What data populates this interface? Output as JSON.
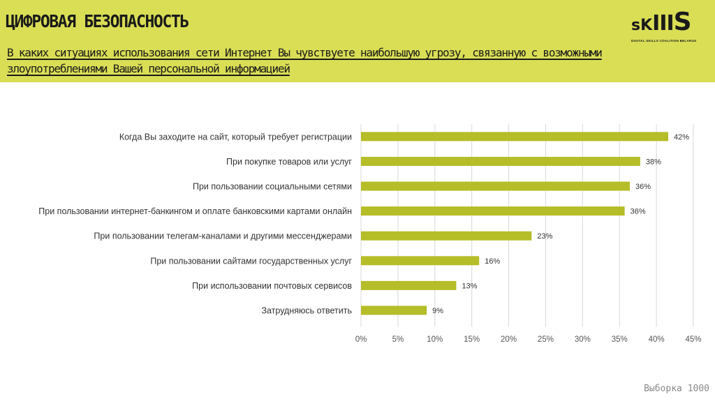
{
  "header": {
    "title": "ЦИФРОВАЯ БЕЗОПАСНОСТЬ",
    "question": "В каких ситуациях использования сети Интернет Вы чувствуете наибольшую угрозу, связанную с возможными злоупотреблениями Вашей персональной информацией",
    "accent_color": "#d9de55"
  },
  "logo": {
    "word_small": "sK",
    "word_bars": "III",
    "word_big": "S",
    "tagline": "DIGITAL SKILLS COALITION BELARUS"
  },
  "chart_data": {
    "type": "bar",
    "orientation": "horizontal",
    "categories": [
      "Когда Вы заходите на сайт, который требует регистрации",
      "При покупке товаров или услуг",
      "При пользовании социальными сетями",
      "При пользовании интернет-банкингом и оплате банковскими картами онлайн",
      "При пользовании телегам-каналами и другими мессенджерами",
      "При пользовании сайтами государственных услуг",
      "При использовании почтовых сервисов",
      "Затрудняюсь ответить"
    ],
    "values": [
      41.6,
      37.8,
      36.4,
      35.7,
      23.1,
      16.0,
      12.9,
      8.9
    ],
    "value_labels": [
      "42%",
      "38%",
      "36%",
      "36%",
      "23%",
      "16%",
      "13%",
      "9%"
    ],
    "x_ticks": [
      "0%",
      "5%",
      "10%",
      "15%",
      "20%",
      "25%",
      "30%",
      "35%",
      "40%",
      "45%"
    ],
    "xlim": [
      0,
      45
    ],
    "grid": true,
    "bar_color": "#b5bd28"
  },
  "footer": {
    "sample": "Выборка 1000"
  }
}
